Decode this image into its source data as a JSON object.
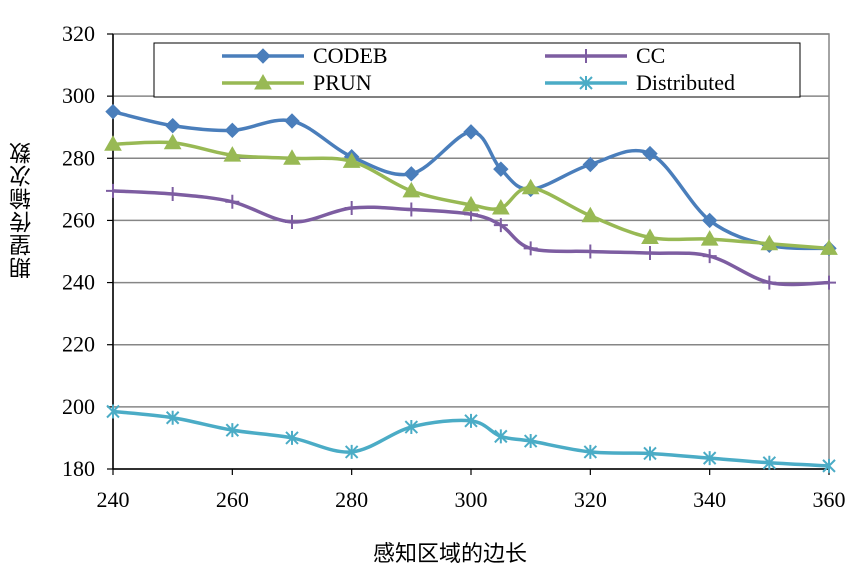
{
  "chart_data": {
    "type": "line",
    "title": "",
    "xlabel": "感知区域的边长",
    "ylabel": "期望传输次数",
    "xlim": [
      240,
      360
    ],
    "ylim": [
      180,
      320
    ],
    "x_ticks": [
      240,
      260,
      280,
      300,
      320,
      340,
      360
    ],
    "y_ticks": [
      180,
      200,
      220,
      240,
      260,
      280,
      300,
      320
    ],
    "x_tick_labels": [
      "240",
      "260",
      "280",
      "300",
      "320",
      "340",
      "360"
    ],
    "y_tick_labels": [
      "180",
      "200",
      "220",
      "240",
      "260",
      "280",
      "300",
      "320"
    ],
    "grid": "horizontal",
    "legend_position": "top",
    "x": [
      240,
      250,
      260,
      270,
      280,
      290,
      300,
      305,
      310,
      320,
      330,
      340,
      350,
      360
    ],
    "series": [
      {
        "name": "CODEB",
        "color": "#4a7ebb",
        "marker": "diamond",
        "values": [
          295,
          290.5,
          289,
          292,
          280.5,
          275,
          288.5,
          276.5,
          270,
          278,
          281.5,
          260,
          252,
          251
        ]
      },
      {
        "name": "CC",
        "color": "#7d5da1",
        "marker": "plus",
        "values": [
          269.5,
          268.5,
          266,
          259.5,
          264,
          263.5,
          262,
          258.5,
          251,
          250,
          249.5,
          248.5,
          240,
          240
        ]
      },
      {
        "name": "PRUN",
        "color": "#98b954",
        "marker": "triangle",
        "values": [
          284.5,
          285,
          281,
          280,
          279,
          269.5,
          265,
          264,
          270.5,
          261.5,
          254.5,
          254,
          252.5,
          251
        ]
      },
      {
        "name": "Distributed",
        "color": "#4bacc6",
        "marker": "star",
        "values": [
          198.5,
          196.5,
          192.5,
          190,
          185.5,
          193.5,
          195.5,
          190.5,
          189,
          185.5,
          185,
          183.5,
          182,
          181
        ]
      }
    ]
  }
}
